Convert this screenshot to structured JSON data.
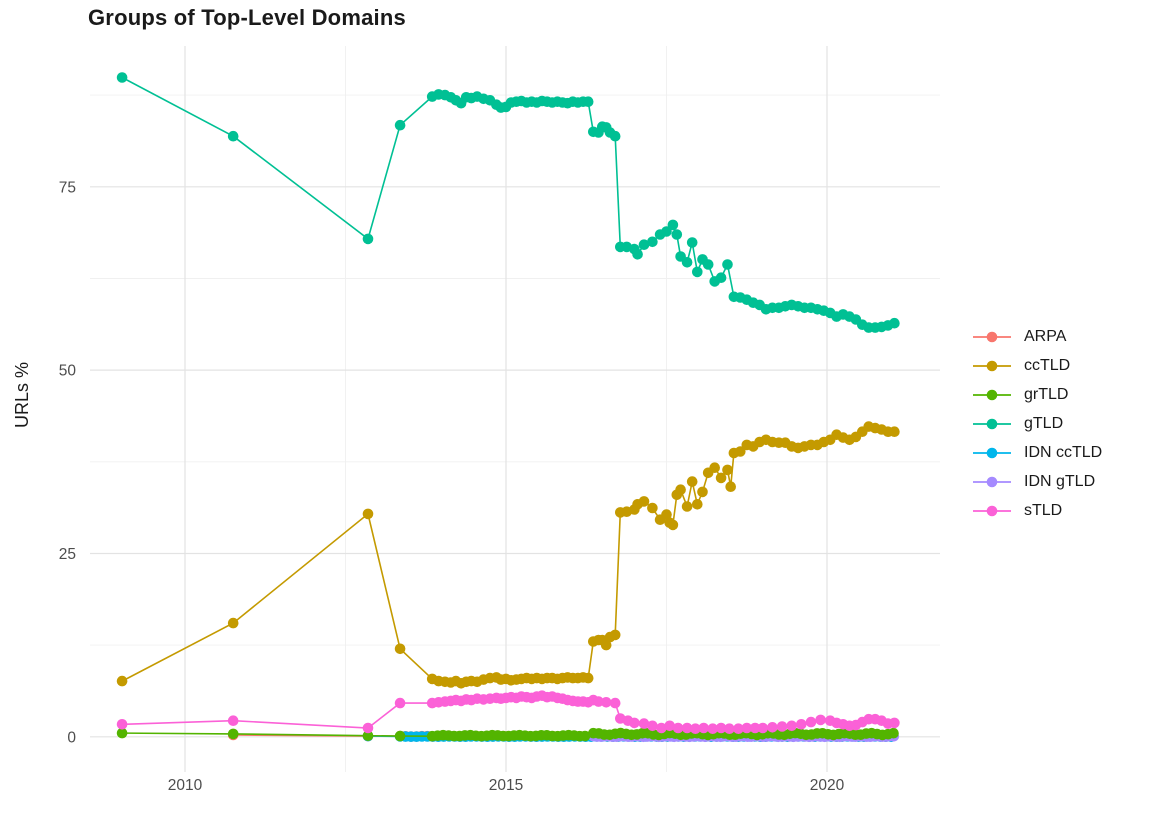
{
  "chart_data": {
    "type": "line",
    "title": "Groups of Top-Level Domains",
    "xlabel": "",
    "ylabel": "URLs %",
    "x_ticks": [
      2010,
      2015,
      2020
    ],
    "y_ticks": [
      0,
      25,
      50,
      75
    ],
    "x_minor_gridlines": [
      2012.5,
      2017.5
    ],
    "y_minor_gridlines": [
      12.5,
      37.5,
      62.5,
      87.5
    ],
    "xlim": [
      2008.52,
      2021.76
    ],
    "ylim": [
      -4.8,
      94.2
    ],
    "grid": "major+minor",
    "legend_position": "right",
    "axis_text_color": "#4d4d4d",
    "series": [
      {
        "name": "ARPA",
        "color": "#F8766D",
        "points": [
          [
            2010.75,
            0.25
          ],
          [
            2012.85,
            0.1
          ]
        ],
        "segments": [
          {
            "from": 2013.35,
            "to": 2021.05,
            "step": 0.085,
            "y": 0.06,
            "jitter": 0.03
          }
        ]
      },
      {
        "name": "ccTLD",
        "color": "#C49A00",
        "points": [
          [
            2009.02,
            7.6
          ],
          [
            2010.75,
            15.5
          ],
          [
            2012.85,
            30.4
          ],
          [
            2013.35,
            12.0
          ],
          [
            2013.85,
            7.9
          ],
          [
            2013.95,
            7.6
          ],
          [
            2014.05,
            7.5
          ],
          [
            2014.14,
            7.4
          ],
          [
            2014.22,
            7.6
          ],
          [
            2014.3,
            7.3
          ],
          [
            2014.38,
            7.5
          ],
          [
            2014.46,
            7.6
          ],
          [
            2014.55,
            7.5
          ],
          [
            2014.65,
            7.8
          ],
          [
            2014.75,
            8.0
          ],
          [
            2014.85,
            8.1
          ],
          [
            2014.92,
            7.8
          ],
          [
            2015.0,
            7.9
          ],
          [
            2015.08,
            7.7
          ],
          [
            2015.16,
            7.8
          ],
          [
            2015.24,
            7.9
          ],
          [
            2015.32,
            8.0
          ],
          [
            2015.4,
            7.9
          ],
          [
            2015.48,
            8.0
          ],
          [
            2015.56,
            7.9
          ],
          [
            2015.64,
            8.0
          ],
          [
            2015.72,
            8.0
          ],
          [
            2015.8,
            7.9
          ],
          [
            2015.88,
            8.0
          ],
          [
            2015.96,
            8.1
          ],
          [
            2016.04,
            8.0
          ],
          [
            2016.12,
            8.0
          ],
          [
            2016.2,
            8.1
          ],
          [
            2016.28,
            8.0
          ],
          [
            2016.36,
            13.0
          ],
          [
            2016.44,
            13.2
          ],
          [
            2016.5,
            13.2
          ],
          [
            2016.56,
            12.5
          ],
          [
            2016.62,
            13.6
          ],
          [
            2016.7,
            13.9
          ],
          [
            2016.78,
            30.6
          ],
          [
            2016.88,
            30.7
          ],
          [
            2017.0,
            31.0
          ],
          [
            2017.05,
            31.7
          ],
          [
            2017.15,
            32.1
          ],
          [
            2017.28,
            31.2
          ],
          [
            2017.4,
            29.6
          ],
          [
            2017.5,
            30.3
          ],
          [
            2017.55,
            29.2
          ],
          [
            2017.6,
            28.9
          ],
          [
            2017.66,
            33.0
          ],
          [
            2017.72,
            33.7
          ],
          [
            2017.82,
            31.4
          ],
          [
            2017.9,
            34.8
          ],
          [
            2017.98,
            31.7
          ],
          [
            2018.06,
            33.4
          ],
          [
            2018.15,
            36.0
          ],
          [
            2018.25,
            36.7
          ],
          [
            2018.35,
            35.3
          ],
          [
            2018.45,
            36.4
          ],
          [
            2018.5,
            34.1
          ],
          [
            2018.55,
            38.7
          ],
          [
            2018.65,
            38.9
          ],
          [
            2018.75,
            39.8
          ],
          [
            2018.85,
            39.6
          ],
          [
            2018.95,
            40.2
          ],
          [
            2019.05,
            40.5
          ],
          [
            2019.15,
            40.2
          ],
          [
            2019.25,
            40.1
          ],
          [
            2019.35,
            40.1
          ],
          [
            2019.45,
            39.6
          ],
          [
            2019.55,
            39.4
          ],
          [
            2019.65,
            39.6
          ],
          [
            2019.75,
            39.8
          ],
          [
            2019.85,
            39.8
          ],
          [
            2019.95,
            40.2
          ],
          [
            2020.05,
            40.5
          ],
          [
            2020.15,
            41.2
          ],
          [
            2020.25,
            40.8
          ],
          [
            2020.35,
            40.5
          ],
          [
            2020.45,
            40.9
          ],
          [
            2020.55,
            41.6
          ],
          [
            2020.65,
            42.3
          ],
          [
            2020.75,
            42.1
          ],
          [
            2020.85,
            41.9
          ],
          [
            2020.95,
            41.6
          ],
          [
            2021.05,
            41.6
          ]
        ]
      },
      {
        "name": "grTLD",
        "color": "#53B400",
        "points": [
          [
            2009.02,
            0.5
          ],
          [
            2010.75,
            0.4
          ],
          [
            2012.85,
            0.15
          ],
          [
            2013.35,
            0.1
          ]
        ],
        "segments": [
          {
            "from": 2013.85,
            "to": 2016.28,
            "step": 0.085,
            "y": 0.15,
            "jitter": 0.07
          },
          {
            "from": 2016.36,
            "to": 2021.05,
            "step": 0.085,
            "y": 0.38,
            "jitter": 0.12
          }
        ]
      },
      {
        "name": "gTLD",
        "color": "#00C094",
        "points": [
          [
            2009.02,
            89.9
          ],
          [
            2010.75,
            81.9
          ],
          [
            2012.85,
            67.9
          ],
          [
            2013.35,
            83.4
          ],
          [
            2013.85,
            87.3
          ],
          [
            2013.95,
            87.6
          ],
          [
            2014.05,
            87.5
          ],
          [
            2014.14,
            87.2
          ],
          [
            2014.22,
            86.8
          ],
          [
            2014.3,
            86.4
          ],
          [
            2014.38,
            87.2
          ],
          [
            2014.46,
            87.1
          ],
          [
            2014.55,
            87.3
          ],
          [
            2014.65,
            87.0
          ],
          [
            2014.75,
            86.8
          ],
          [
            2014.85,
            86.2
          ],
          [
            2014.92,
            85.8
          ],
          [
            2015.0,
            85.9
          ],
          [
            2015.08,
            86.5
          ],
          [
            2015.16,
            86.6
          ],
          [
            2015.24,
            86.7
          ],
          [
            2015.32,
            86.5
          ],
          [
            2015.4,
            86.6
          ],
          [
            2015.48,
            86.5
          ],
          [
            2015.56,
            86.7
          ],
          [
            2015.64,
            86.6
          ],
          [
            2015.72,
            86.5
          ],
          [
            2015.8,
            86.6
          ],
          [
            2015.88,
            86.5
          ],
          [
            2015.96,
            86.4
          ],
          [
            2016.04,
            86.6
          ],
          [
            2016.12,
            86.5
          ],
          [
            2016.2,
            86.6
          ],
          [
            2016.28,
            86.6
          ],
          [
            2016.36,
            82.5
          ],
          [
            2016.44,
            82.4
          ],
          [
            2016.5,
            83.2
          ],
          [
            2016.56,
            83.1
          ],
          [
            2016.62,
            82.4
          ],
          [
            2016.7,
            81.9
          ],
          [
            2016.78,
            66.8
          ],
          [
            2016.88,
            66.8
          ],
          [
            2017.0,
            66.5
          ],
          [
            2017.05,
            65.8
          ],
          [
            2017.15,
            67.1
          ],
          [
            2017.28,
            67.5
          ],
          [
            2017.4,
            68.5
          ],
          [
            2017.5,
            68.9
          ],
          [
            2017.6,
            69.8
          ],
          [
            2017.66,
            68.5
          ],
          [
            2017.72,
            65.5
          ],
          [
            2017.82,
            64.7
          ],
          [
            2017.9,
            67.4
          ],
          [
            2017.98,
            63.4
          ],
          [
            2018.06,
            65.1
          ],
          [
            2018.15,
            64.4
          ],
          [
            2018.25,
            62.1
          ],
          [
            2018.35,
            62.6
          ],
          [
            2018.45,
            64.4
          ],
          [
            2018.55,
            60.0
          ],
          [
            2018.65,
            59.9
          ],
          [
            2018.75,
            59.6
          ],
          [
            2018.85,
            59.2
          ],
          [
            2018.95,
            58.9
          ],
          [
            2019.05,
            58.3
          ],
          [
            2019.15,
            58.5
          ],
          [
            2019.25,
            58.5
          ],
          [
            2019.35,
            58.7
          ],
          [
            2019.45,
            58.9
          ],
          [
            2019.55,
            58.7
          ],
          [
            2019.65,
            58.5
          ],
          [
            2019.75,
            58.5
          ],
          [
            2019.85,
            58.3
          ],
          [
            2019.95,
            58.1
          ],
          [
            2020.05,
            57.8
          ],
          [
            2020.15,
            57.3
          ],
          [
            2020.25,
            57.6
          ],
          [
            2020.35,
            57.3
          ],
          [
            2020.45,
            56.9
          ],
          [
            2020.55,
            56.2
          ],
          [
            2020.65,
            55.8
          ],
          [
            2020.75,
            55.8
          ],
          [
            2020.85,
            55.9
          ],
          [
            2020.95,
            56.1
          ],
          [
            2021.05,
            56.4
          ]
        ]
      },
      {
        "name": "IDN ccTLD",
        "color": "#00B6EB",
        "points": [
          [
            2012.85,
            0.1
          ]
        ],
        "segments": [
          {
            "from": 2013.35,
            "to": 2021.05,
            "step": 0.085,
            "y": 0.03,
            "jitter": 0.02
          }
        ]
      },
      {
        "name": "IDN gTLD",
        "color": "#A58AFF",
        "points": [],
        "segments": [
          {
            "from": 2016.36,
            "to": 2021.05,
            "step": 0.06,
            "y": 0.05,
            "jitter": 0.05
          }
        ]
      },
      {
        "name": "sTLD",
        "color": "#FB61D7",
        "points": [
          [
            2009.02,
            1.7
          ],
          [
            2010.75,
            2.2
          ],
          [
            2012.85,
            1.2
          ],
          [
            2013.35,
            4.6
          ],
          [
            2013.85,
            4.6
          ],
          [
            2013.95,
            4.7
          ],
          [
            2014.05,
            4.8
          ],
          [
            2014.14,
            4.9
          ],
          [
            2014.22,
            5.0
          ],
          [
            2014.3,
            4.9
          ],
          [
            2014.38,
            5.1
          ],
          [
            2014.46,
            5.0
          ],
          [
            2014.55,
            5.2
          ],
          [
            2014.65,
            5.1
          ],
          [
            2014.75,
            5.2
          ],
          [
            2014.85,
            5.3
          ],
          [
            2014.92,
            5.2
          ],
          [
            2015.0,
            5.3
          ],
          [
            2015.08,
            5.4
          ],
          [
            2015.16,
            5.3
          ],
          [
            2015.24,
            5.5
          ],
          [
            2015.32,
            5.4
          ],
          [
            2015.4,
            5.3
          ],
          [
            2015.48,
            5.5
          ],
          [
            2015.56,
            5.6
          ],
          [
            2015.64,
            5.4
          ],
          [
            2015.72,
            5.5
          ],
          [
            2015.8,
            5.3
          ],
          [
            2015.88,
            5.2
          ],
          [
            2015.96,
            5.0
          ],
          [
            2016.04,
            4.9
          ],
          [
            2016.12,
            4.8
          ],
          [
            2016.2,
            4.8
          ],
          [
            2016.28,
            4.7
          ],
          [
            2016.36,
            5.0
          ],
          [
            2016.44,
            4.8
          ],
          [
            2016.56,
            4.7
          ],
          [
            2016.7,
            4.6
          ],
          [
            2016.78,
            2.5
          ],
          [
            2016.9,
            2.2
          ],
          [
            2017.0,
            1.9
          ],
          [
            2017.15,
            1.8
          ],
          [
            2017.28,
            1.5
          ],
          [
            2017.42,
            1.2
          ],
          [
            2017.55,
            1.5
          ],
          [
            2017.68,
            1.2
          ],
          [
            2017.82,
            1.2
          ],
          [
            2017.95,
            1.1
          ],
          [
            2018.08,
            1.2
          ],
          [
            2018.22,
            1.1
          ],
          [
            2018.35,
            1.2
          ],
          [
            2018.48,
            1.1
          ],
          [
            2018.62,
            1.1
          ],
          [
            2018.75,
            1.2
          ],
          [
            2018.88,
            1.2
          ],
          [
            2019.0,
            1.2
          ],
          [
            2019.15,
            1.3
          ],
          [
            2019.3,
            1.4
          ],
          [
            2019.45,
            1.5
          ],
          [
            2019.6,
            1.7
          ],
          [
            2019.75,
            2.0
          ],
          [
            2019.9,
            2.3
          ],
          [
            2020.05,
            2.2
          ],
          [
            2020.15,
            1.9
          ],
          [
            2020.25,
            1.7
          ],
          [
            2020.35,
            1.5
          ],
          [
            2020.45,
            1.6
          ],
          [
            2020.55,
            2.0
          ],
          [
            2020.65,
            2.4
          ],
          [
            2020.75,
            2.4
          ],
          [
            2020.85,
            2.2
          ],
          [
            2020.95,
            1.8
          ],
          [
            2021.05,
            1.9
          ]
        ]
      }
    ]
  }
}
